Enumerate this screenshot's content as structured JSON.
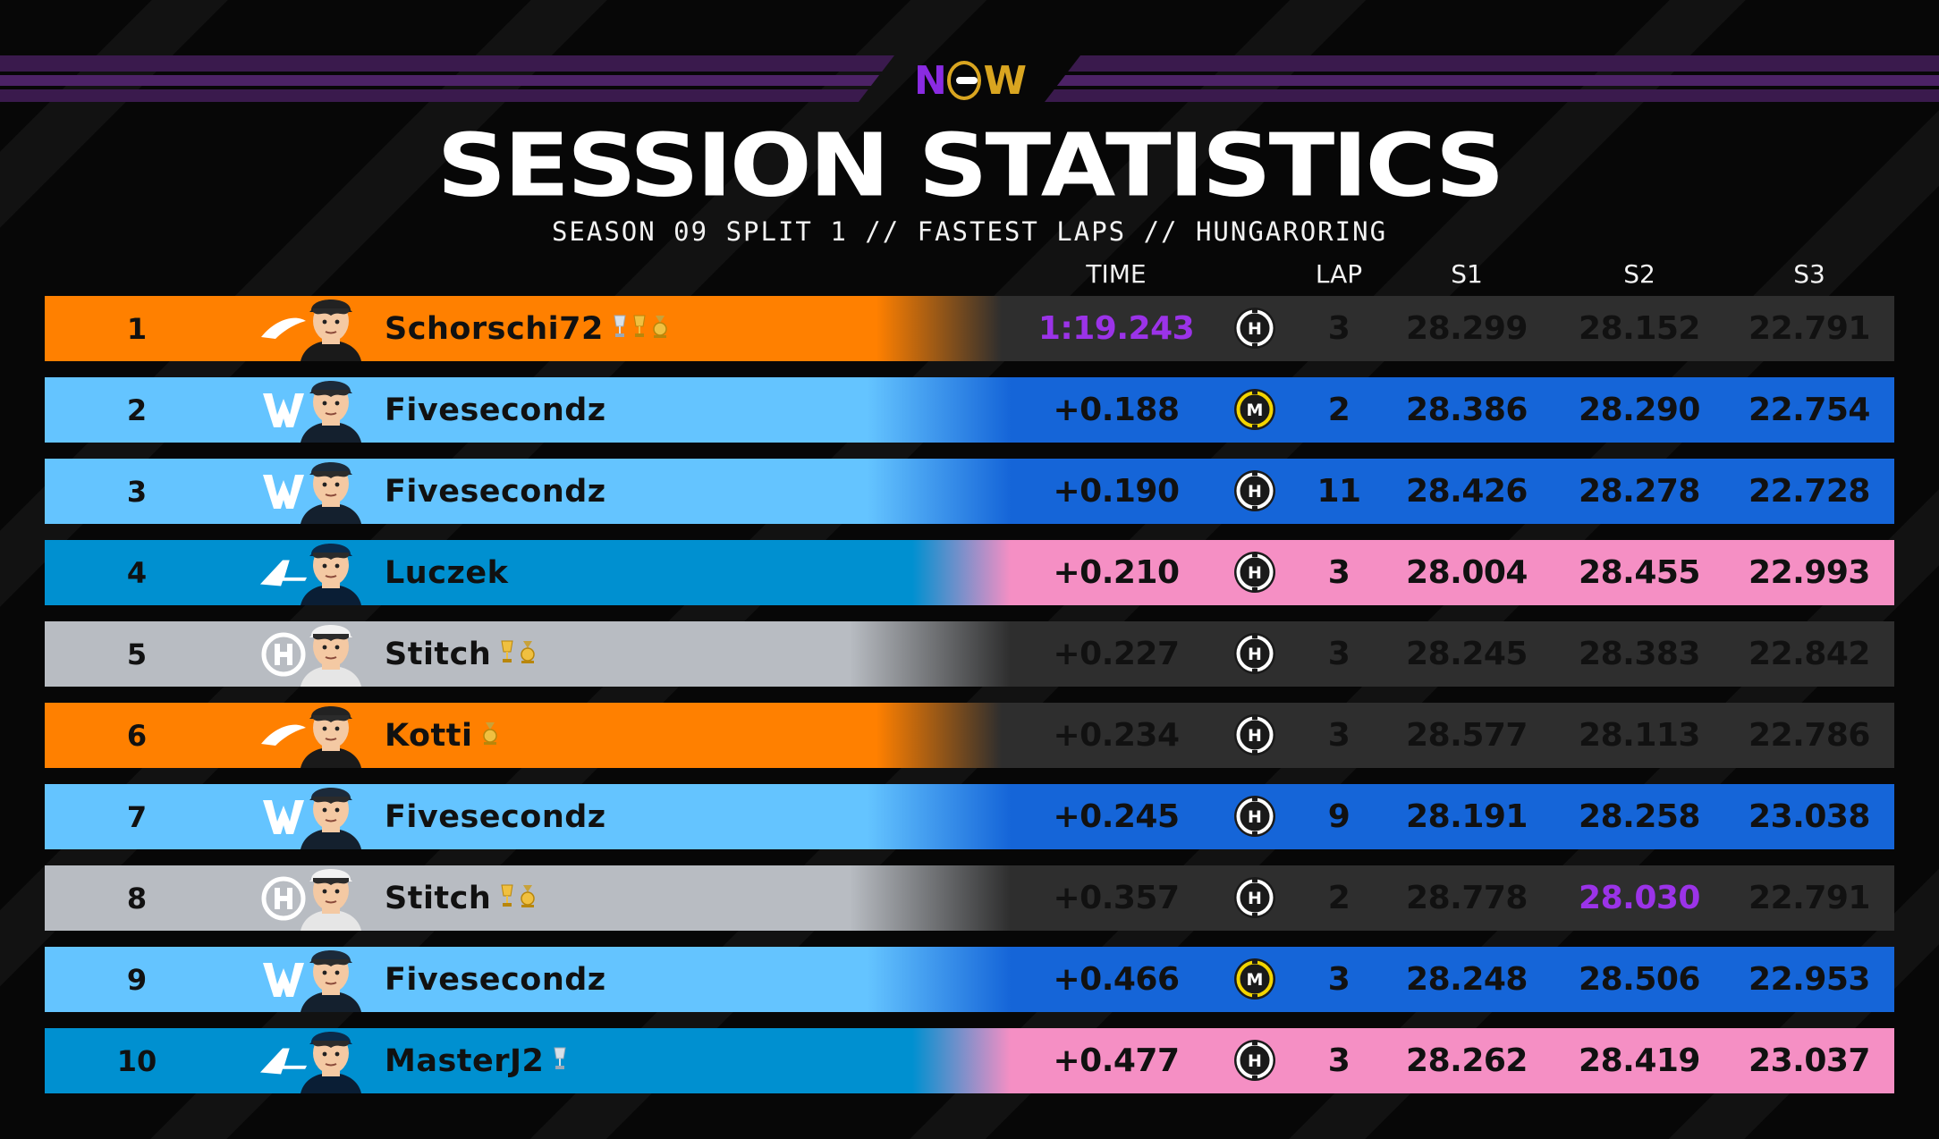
{
  "title": "SESSION STATISTICS",
  "subtitle": "SEASON 09 SPLIT 1 // FASTEST LAPS // HUNGARORING",
  "columns": {
    "time": "TIME",
    "lap": "LAP",
    "s1": "S1",
    "s2": "S2",
    "s3": "S3"
  },
  "colors": {
    "mclaren": "#ff8000",
    "williams_light": "#64c4ff",
    "williams_dark": "#1565d8",
    "alpine_blue": "#0090d0",
    "alpine_pink": "#f58fc4",
    "haas_light": "#b8bcc2",
    "dark_cell": "#2e2e2e",
    "fastest": "#9b33e8",
    "tyre_hard": "#ffffff",
    "tyre_medium": "#f3d500"
  },
  "rows": [
    {
      "pos": "1",
      "team": "mclaren",
      "team_icon": "mclaren-logo-icon",
      "driver": "Schorschi72",
      "trophies": [
        "silver-trophy-icon",
        "gold-trophy-icon",
        "gold-medal-icon"
      ],
      "time": "1:19.243",
      "time_fastest": true,
      "tyre": "H",
      "lap": "3",
      "s1": "28.299",
      "s2": "28.152",
      "s3": "22.791",
      "s2_fastest": false
    },
    {
      "pos": "2",
      "team": "williams",
      "team_icon": "williams-logo-icon",
      "driver": "Fivesecondz",
      "trophies": [],
      "time": "+0.188",
      "time_fastest": false,
      "tyre": "M",
      "lap": "2",
      "s1": "28.386",
      "s2": "28.290",
      "s3": "22.754",
      "s2_fastest": false
    },
    {
      "pos": "3",
      "team": "williams",
      "team_icon": "williams-logo-icon",
      "driver": "Fivesecondz",
      "trophies": [],
      "time": "+0.190",
      "time_fastest": false,
      "tyre": "H",
      "lap": "11",
      "s1": "28.426",
      "s2": "28.278",
      "s3": "22.728",
      "s2_fastest": false
    },
    {
      "pos": "4",
      "team": "alpine",
      "team_icon": "alpine-logo-icon",
      "driver": "Luczek",
      "trophies": [],
      "time": "+0.210",
      "time_fastest": false,
      "tyre": "H",
      "lap": "3",
      "s1": "28.004",
      "s2": "28.455",
      "s3": "22.993",
      "s2_fastest": false
    },
    {
      "pos": "5",
      "team": "haas",
      "team_icon": "haas-logo-icon",
      "driver": "Stitch",
      "trophies": [
        "gold-trophy-icon",
        "gold-medal-icon"
      ],
      "time": "+0.227",
      "time_fastest": false,
      "tyre": "H",
      "lap": "3",
      "s1": "28.245",
      "s2": "28.383",
      "s3": "22.842",
      "s2_fastest": false
    },
    {
      "pos": "6",
      "team": "mclaren",
      "team_icon": "mclaren-logo-icon",
      "driver": "Kotti",
      "trophies": [
        "gold-medal-icon"
      ],
      "time": "+0.234",
      "time_fastest": false,
      "tyre": "H",
      "lap": "3",
      "s1": "28.577",
      "s2": "28.113",
      "s3": "22.786",
      "s2_fastest": false
    },
    {
      "pos": "7",
      "team": "williams",
      "team_icon": "williams-logo-icon",
      "driver": "Fivesecondz",
      "trophies": [],
      "time": "+0.245",
      "time_fastest": false,
      "tyre": "H",
      "lap": "9",
      "s1": "28.191",
      "s2": "28.258",
      "s3": "23.038",
      "s2_fastest": false
    },
    {
      "pos": "8",
      "team": "haas",
      "team_icon": "haas-logo-icon",
      "driver": "Stitch",
      "trophies": [
        "gold-trophy-icon",
        "gold-medal-icon"
      ],
      "time": "+0.357",
      "time_fastest": false,
      "tyre": "H",
      "lap": "2",
      "s1": "28.778",
      "s2": "28.030",
      "s3": "22.791",
      "s2_fastest": true
    },
    {
      "pos": "9",
      "team": "williams",
      "team_icon": "williams-logo-icon",
      "driver": "Fivesecondz",
      "trophies": [],
      "time": "+0.466",
      "time_fastest": false,
      "tyre": "M",
      "lap": "3",
      "s1": "28.248",
      "s2": "28.506",
      "s3": "22.953",
      "s2_fastest": false
    },
    {
      "pos": "10",
      "team": "alpine",
      "team_icon": "alpine-logo-icon",
      "driver": "MasterJ2",
      "trophies": [
        "silver-trophy-icon"
      ],
      "time": "+0.477",
      "time_fastest": false,
      "tyre": "H",
      "lap": "3",
      "s1": "28.262",
      "s2": "28.419",
      "s3": "23.037",
      "s2_fastest": false
    }
  ]
}
